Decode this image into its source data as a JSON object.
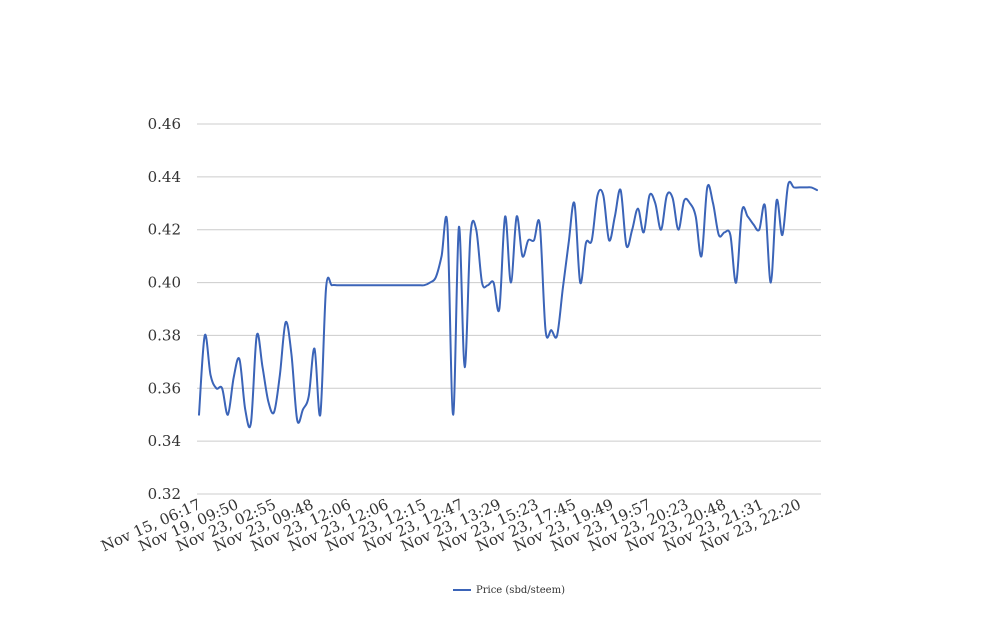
{
  "chart_data": {
    "type": "line",
    "title": "",
    "xlabel": "",
    "ylabel": "",
    "ylim": [
      0.32,
      0.46
    ],
    "yticks": [
      "0.32",
      "0.34",
      "0.36",
      "0.38",
      "0.40",
      "0.42",
      "0.44",
      "0.46"
    ],
    "xtick_labels": [
      "Nov 15, 06:17",
      "Nov 19, 09:50",
      "Nov 23, 02:55",
      "Nov 23, 09:48",
      "Nov 23, 12:06",
      "Nov 23, 12:06",
      "Nov 23, 12:15",
      "Nov 23, 12:47",
      "Nov 23, 13:29",
      "Nov 23, 15:23",
      "Nov 23, 17:45",
      "Nov 23, 19:49",
      "Nov 23, 19:57",
      "Nov 23, 20:23",
      "Nov 23, 20:48",
      "Nov 23, 21:31",
      "Nov 23, 22:20"
    ],
    "grid": true,
    "legend_position": "bottom",
    "series": [
      {
        "name": "Price (sbd/steem)",
        "color": "#3b64b8",
        "values": [
          0.35,
          0.38,
          0.365,
          0.36,
          0.36,
          0.35,
          0.364,
          0.371,
          0.352,
          0.347,
          0.38,
          0.368,
          0.355,
          0.351,
          0.365,
          0.385,
          0.373,
          0.348,
          0.352,
          0.357,
          0.375,
          0.35,
          0.398,
          0.399,
          0.399,
          0.399,
          0.399,
          0.399,
          0.399,
          0.399,
          0.399,
          0.399,
          0.399,
          0.399,
          0.399,
          0.399,
          0.399,
          0.399,
          0.399,
          0.399,
          0.4,
          0.402,
          0.41,
          0.422,
          0.35,
          0.421,
          0.368,
          0.418,
          0.42,
          0.4,
          0.399,
          0.4,
          0.39,
          0.425,
          0.4,
          0.425,
          0.41,
          0.416,
          0.416,
          0.422,
          0.382,
          0.382,
          0.38,
          0.398,
          0.415,
          0.43,
          0.4,
          0.415,
          0.416,
          0.433,
          0.433,
          0.416,
          0.425,
          0.435,
          0.414,
          0.42,
          0.428,
          0.419,
          0.433,
          0.43,
          0.42,
          0.433,
          0.432,
          0.42,
          0.431,
          0.43,
          0.425,
          0.41,
          0.436,
          0.43,
          0.418,
          0.419,
          0.418,
          0.4,
          0.427,
          0.425,
          0.422,
          0.42,
          0.429,
          0.4,
          0.431,
          0.418,
          0.437,
          0.436,
          0.436,
          0.436,
          0.436,
          0.435
        ]
      }
    ]
  }
}
